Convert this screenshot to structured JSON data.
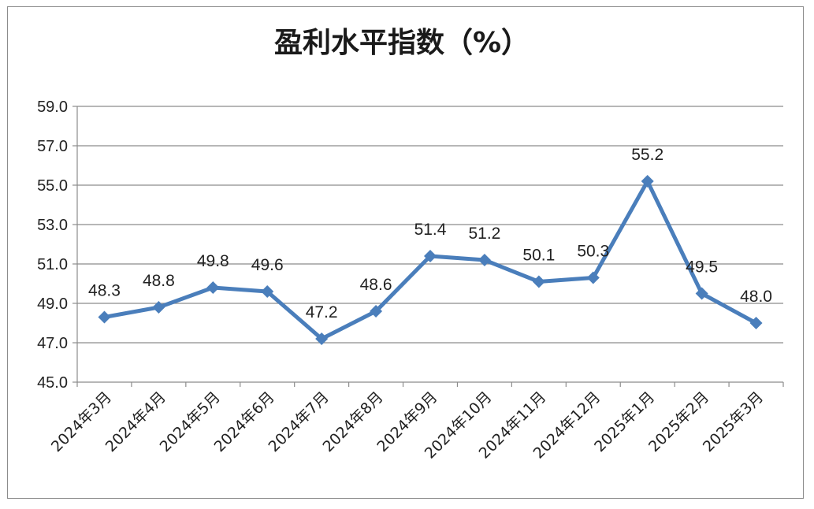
{
  "chart_data": {
    "type": "line",
    "title": "盈利水平指数（%）",
    "categories": [
      "2024年3月",
      "2024年4月",
      "2024年5月",
      "2024年6月",
      "2024年7月",
      "2024年8月",
      "2024年9月",
      "2024年10月",
      "2024年11月",
      "2024年12月",
      "2025年1月",
      "2025年2月",
      "2025年3月"
    ],
    "series": [
      {
        "values": [
          48.3,
          48.8,
          49.8,
          49.6,
          47.2,
          48.6,
          51.4,
          51.2,
          50.1,
          50.3,
          55.2,
          49.5,
          48.0
        ]
      }
    ],
    "data_labels": [
      "48.3",
      "48.8",
      "49.8",
      "49.6",
      "47.2",
      "48.6",
      "51.4",
      "51.2",
      "50.1",
      "50.3",
      "55.2",
      "49.5",
      "48.0"
    ],
    "y_ticks": [
      "45.0",
      "47.0",
      "49.0",
      "51.0",
      "53.0",
      "55.0",
      "57.0",
      "59.0"
    ],
    "ylim": [
      45,
      59
    ],
    "grid": true,
    "legend": "none",
    "line_color": "#4a7ebb"
  }
}
